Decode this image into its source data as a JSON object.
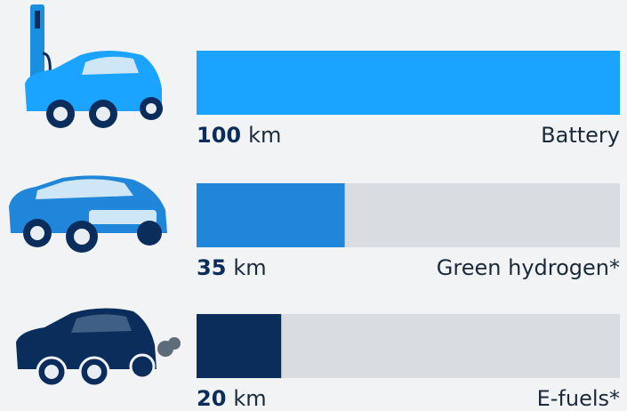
{
  "chart_data": {
    "type": "bar",
    "orientation": "horizontal",
    "categories": [
      "Battery",
      "Green hydrogen*",
      "E-fuels*"
    ],
    "values": [
      100,
      35,
      20
    ],
    "unit": "km",
    "colors": [
      "#1aa3ff",
      "#1f86d9",
      "#0b2d5b"
    ],
    "track_color": "#d9dde1",
    "xlim": [
      0,
      100
    ]
  }
}
